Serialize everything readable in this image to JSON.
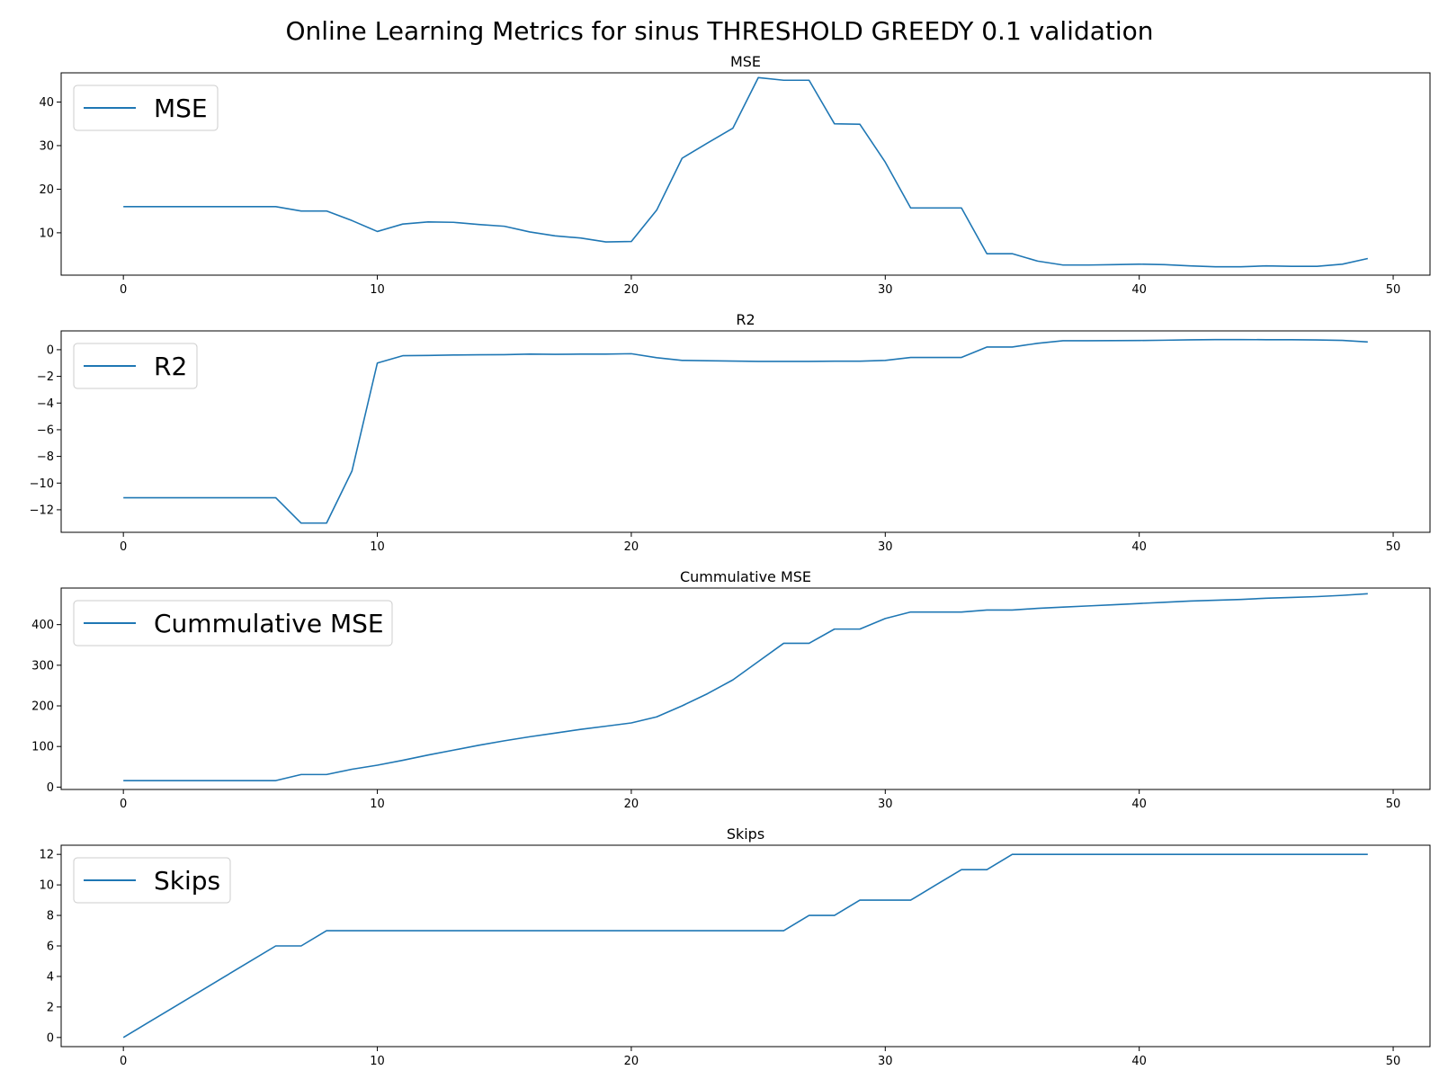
{
  "figure": {
    "title": "Online Learning Metrics for sinus THRESHOLD GREEDY 0.1 validation"
  },
  "colors": {
    "line": "#1f77b4",
    "axes": "#000000",
    "legend_border": "#cccccc"
  },
  "chart_data": [
    {
      "type": "line",
      "title": "MSE",
      "xlabel": "",
      "ylabel": "",
      "grid": false,
      "legend_position": "upper-left",
      "xlim": [
        -2.45,
        51.45
      ],
      "ylim": [
        0.28,
        46.7
      ],
      "xticks": [
        0,
        10,
        20,
        30,
        40,
        50
      ],
      "yticks": [
        10,
        20,
        30,
        40
      ],
      "x": [
        0,
        1,
        2,
        3,
        4,
        5,
        6,
        7,
        8,
        9,
        10,
        11,
        12,
        13,
        14,
        15,
        16,
        17,
        18,
        19,
        20,
        21,
        22,
        23,
        24,
        25,
        26,
        27,
        28,
        29,
        30,
        31,
        32,
        33,
        34,
        35,
        36,
        37,
        38,
        39,
        40,
        41,
        42,
        43,
        44,
        45,
        46,
        47,
        48,
        49
      ],
      "series": [
        {
          "name": "MSE",
          "values": [
            16,
            16,
            16,
            16,
            16,
            16,
            16,
            15,
            15,
            12.8,
            10.3,
            12,
            12.5,
            12.4,
            11.9,
            11.5,
            10.2,
            9.3,
            8.8,
            7.9,
            8,
            15.2,
            27.1,
            30.6,
            34,
            45.6,
            45,
            45,
            35,
            34.9,
            26.2,
            15.7,
            15.7,
            15.7,
            5.2,
            5.2,
            3.5,
            2.6,
            2.6,
            2.7,
            2.8,
            2.7,
            2.4,
            2.2,
            2.2,
            2.4,
            2.3,
            2.3,
            2.8,
            4.1
          ]
        }
      ]
    },
    {
      "type": "line",
      "title": "R2",
      "xlabel": "",
      "ylabel": "",
      "grid": false,
      "legend_position": "upper-left",
      "xlim": [
        -2.45,
        51.45
      ],
      "ylim": [
        -13.69,
        1.41
      ],
      "xticks": [
        0,
        10,
        20,
        30,
        40,
        50
      ],
      "yticks": [
        0,
        -2,
        -4,
        -6,
        -8,
        -10,
        -12
      ],
      "x": [
        0,
        1,
        2,
        3,
        4,
        5,
        6,
        7,
        8,
        9,
        10,
        11,
        12,
        13,
        14,
        15,
        16,
        17,
        18,
        19,
        20,
        21,
        22,
        23,
        24,
        25,
        26,
        27,
        28,
        29,
        30,
        31,
        32,
        33,
        34,
        35,
        36,
        37,
        38,
        39,
        40,
        41,
        42,
        43,
        44,
        45,
        46,
        47,
        48,
        49
      ],
      "series": [
        {
          "name": "R2",
          "values": [
            -11.1,
            -11.1,
            -11.1,
            -11.1,
            -11.1,
            -11.1,
            -11.1,
            -13,
            -13,
            -9.1,
            -1,
            -0.45,
            -0.43,
            -0.4,
            -0.38,
            -0.37,
            -0.33,
            -0.35,
            -0.33,
            -0.33,
            -0.3,
            -0.6,
            -0.8,
            -0.83,
            -0.85,
            -0.88,
            -0.88,
            -0.88,
            -0.86,
            -0.86,
            -0.8,
            -0.58,
            -0.58,
            -0.58,
            0.2,
            0.2,
            0.48,
            0.67,
            0.67,
            0.68,
            0.69,
            0.71,
            0.74,
            0.76,
            0.76,
            0.75,
            0.75,
            0.73,
            0.7,
            0.58
          ]
        }
      ]
    },
    {
      "type": "line",
      "title": "Cummulative MSE",
      "xlabel": "",
      "ylabel": "",
      "grid": false,
      "legend_position": "upper-left",
      "xlim": [
        -2.45,
        51.45
      ],
      "ylim": [
        -5.8,
        490
      ],
      "xticks": [
        0,
        10,
        20,
        30,
        40,
        50
      ],
      "yticks": [
        0,
        100,
        200,
        300,
        400
      ],
      "x": [
        0,
        1,
        2,
        3,
        4,
        5,
        6,
        7,
        8,
        9,
        10,
        11,
        12,
        13,
        14,
        15,
        16,
        17,
        18,
        19,
        20,
        21,
        22,
        23,
        24,
        25,
        26,
        27,
        28,
        29,
        30,
        31,
        32,
        33,
        34,
        35,
        36,
        37,
        38,
        39,
        40,
        41,
        42,
        43,
        44,
        45,
        46,
        47,
        48,
        49
      ],
      "series": [
        {
          "name": "Cummulative MSE",
          "values": [
            16,
            16,
            16,
            16,
            16,
            16,
            16,
            31,
            31,
            44,
            54,
            66,
            79,
            91,
            103,
            114,
            124,
            133,
            142,
            150,
            158,
            173,
            200,
            230,
            264,
            309,
            354,
            354,
            389,
            389,
            415,
            431,
            431,
            431,
            436,
            436,
            440,
            443,
            446,
            449,
            452,
            455,
            458,
            460,
            462,
            465,
            467,
            469,
            472,
            476
          ]
        }
      ]
    },
    {
      "type": "line",
      "title": "Skips",
      "xlabel": "",
      "ylabel": "",
      "grid": false,
      "legend_position": "upper-left",
      "xlim": [
        -2.45,
        51.45
      ],
      "ylim": [
        -0.6,
        12.6
      ],
      "xticks": [
        0,
        10,
        20,
        30,
        40,
        50
      ],
      "yticks": [
        0,
        2,
        4,
        6,
        8,
        10,
        12
      ],
      "x": [
        0,
        1,
        2,
        3,
        4,
        5,
        6,
        7,
        8,
        9,
        10,
        11,
        12,
        13,
        14,
        15,
        16,
        17,
        18,
        19,
        20,
        21,
        22,
        23,
        24,
        25,
        26,
        27,
        28,
        29,
        30,
        31,
        32,
        33,
        34,
        35,
        36,
        37,
        38,
        39,
        40,
        41,
        42,
        43,
        44,
        45,
        46,
        47,
        48,
        49
      ],
      "series": [
        {
          "name": "Skips",
          "values": [
            0,
            1,
            2,
            3,
            4,
            5,
            6,
            6,
            7,
            7,
            7,
            7,
            7,
            7,
            7,
            7,
            7,
            7,
            7,
            7,
            7,
            7,
            7,
            7,
            7,
            7,
            7,
            8,
            8,
            9,
            9,
            9,
            10,
            11,
            11,
            12,
            12,
            12,
            12,
            12,
            12,
            12,
            12,
            12,
            12,
            12,
            12,
            12,
            12,
            12
          ]
        }
      ]
    }
  ]
}
